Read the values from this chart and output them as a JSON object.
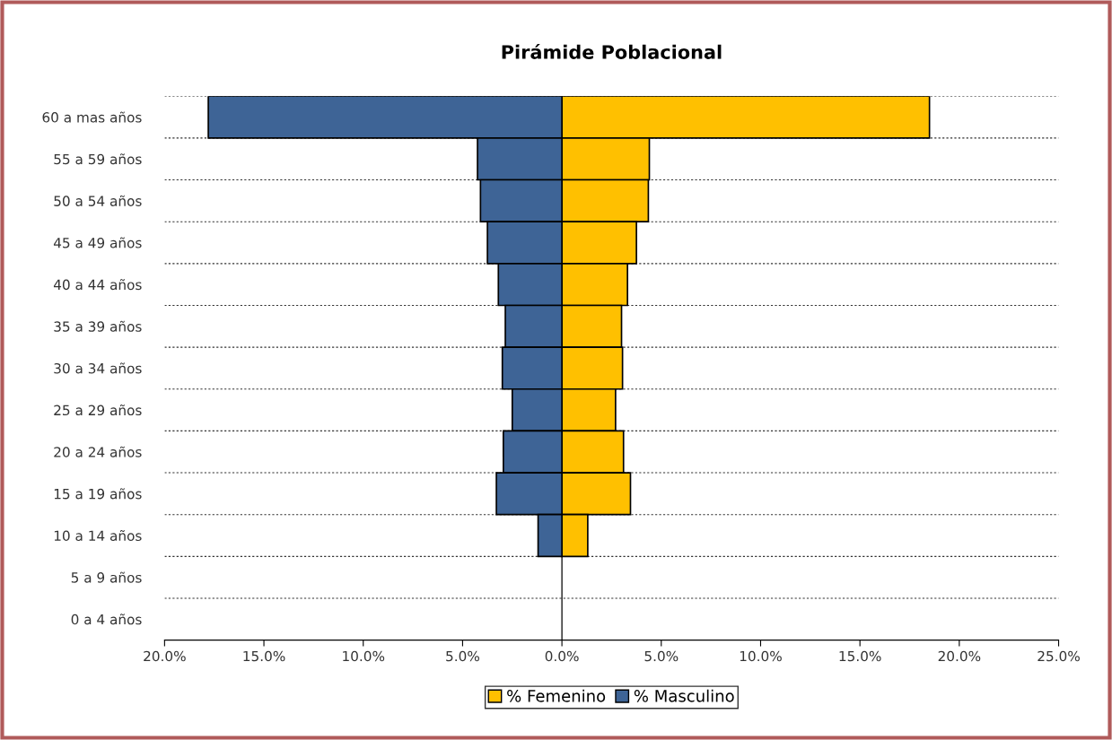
{
  "chart_data": {
    "type": "bar",
    "orientation": "horizontal",
    "stacked": true,
    "title": "Pirámide Poblacional",
    "categories": [
      "60 a mas años",
      "55 a 59 años",
      "50 a 54 años",
      "45 a 49 años",
      "40 a 44 años",
      "35 a 39 años",
      "30 a 34 años",
      "25 a 29 años",
      "20 a 24 años",
      "15 a 19 años",
      "10 a 14 años",
      "5 a 9 años",
      "0 a 4 años"
    ],
    "series": [
      {
        "name": "% Femenino",
        "color": "#ffc000",
        "values": [
          18.5,
          4.4,
          4.35,
          3.75,
          3.3,
          3.0,
          3.05,
          2.7,
          3.1,
          3.45,
          1.3,
          0,
          0
        ]
      },
      {
        "name": "% Masculino",
        "color": "#3e6496",
        "values": [
          -17.8,
          -4.25,
          -4.1,
          -3.75,
          -3.2,
          -2.85,
          -3.0,
          -2.5,
          -2.95,
          -3.3,
          -1.2,
          0,
          0
        ]
      }
    ],
    "xlim": [
      -20,
      25
    ],
    "xticks": [
      {
        "value": -20,
        "label": "20.0%"
      },
      {
        "value": -15,
        "label": "15.0%"
      },
      {
        "value": -10,
        "label": "10.0%"
      },
      {
        "value": -5,
        "label": "5.0%"
      },
      {
        "value": 0,
        "label": "0.0%"
      },
      {
        "value": 5,
        "label": "5.0%"
      },
      {
        "value": 10,
        "label": "10.0%"
      },
      {
        "value": 15,
        "label": "15.0%"
      },
      {
        "value": 20,
        "label": "20.0%"
      },
      {
        "value": 25,
        "label": "25.0%"
      }
    ],
    "grid": "y",
    "legend": "bottom"
  }
}
